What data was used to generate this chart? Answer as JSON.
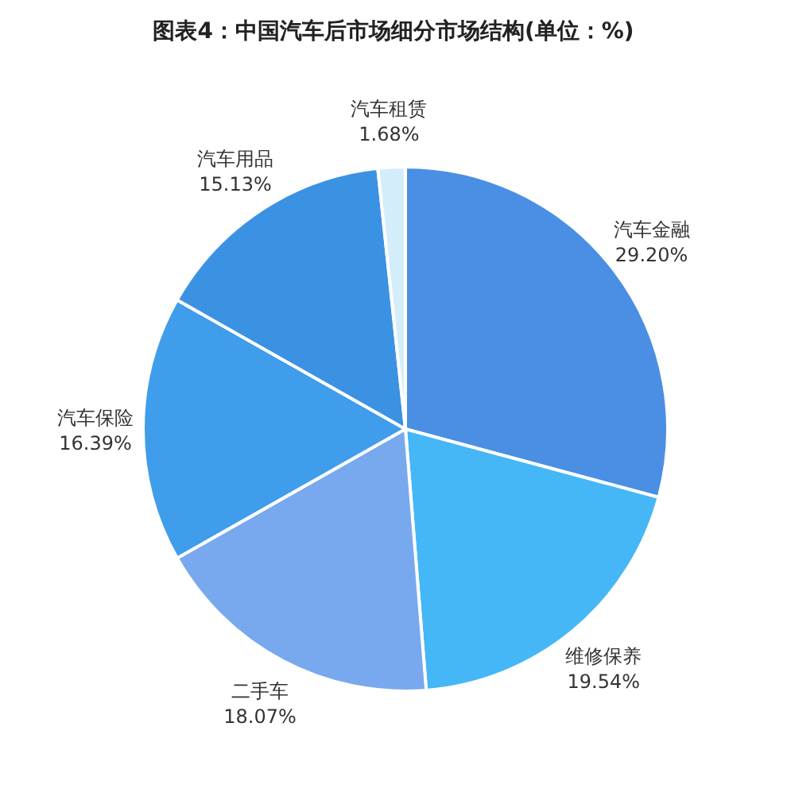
{
  "chart_data": {
    "type": "pie",
    "title": "图表4：中国汽车后市场细分市场结构(单位：%)",
    "categories": [
      "汽车金融",
      "维修保养",
      "二手车",
      "汽车保险",
      "汽车用品",
      "汽车租赁"
    ],
    "values": [
      29.2,
      19.54,
      18.07,
      16.39,
      15.13,
      1.68
    ],
    "value_labels": [
      "29.20%",
      "19.54%",
      "18.07%",
      "16.39%",
      "15.13%",
      "1.68%"
    ],
    "colors": [
      "#4a8fe3",
      "#45b7f6",
      "#78a9ee",
      "#3f9deb",
      "#3b92e3",
      "#d3edfb"
    ]
  }
}
